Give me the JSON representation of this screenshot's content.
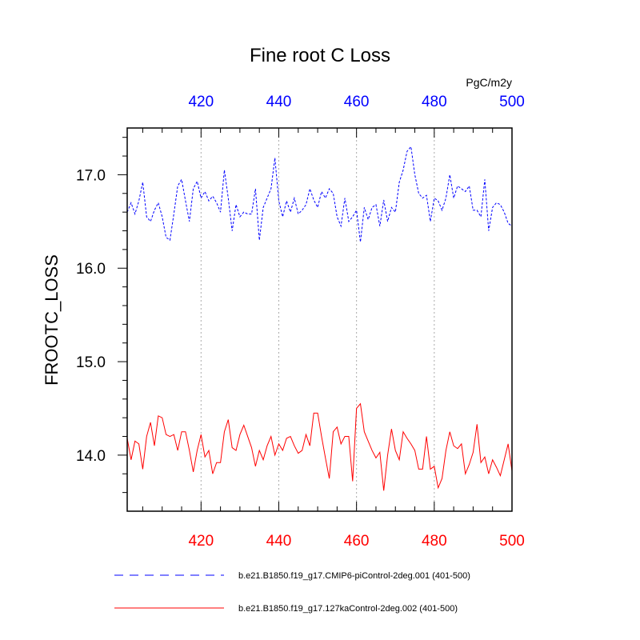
{
  "chart_data": {
    "type": "line",
    "title": "Fine root C Loss",
    "units": "PgC/m2y",
    "ylabel": "FROOTC_LOSS",
    "xlim": [
      401,
      500
    ],
    "ylim": [
      13.4,
      17.5
    ],
    "grid": "vertical dotted lines at x = 420, 440, 460, 480",
    "legend_position": "bottom",
    "top_axis_color": "#0000ff",
    "bottom_axis_color": "#ff0000",
    "x_ticks": [
      "420",
      "440",
      "460",
      "480",
      "500"
    ],
    "y_ticks": [
      "14.0",
      "15.0",
      "16.0",
      "17.0"
    ],
    "x": [
      401,
      402,
      403,
      404,
      405,
      406,
      407,
      408,
      409,
      410,
      411,
      412,
      413,
      414,
      415,
      416,
      417,
      418,
      419,
      420,
      421,
      422,
      423,
      424,
      425,
      426,
      427,
      428,
      429,
      430,
      431,
      432,
      433,
      434,
      435,
      436,
      437,
      438,
      439,
      440,
      441,
      442,
      443,
      444,
      445,
      446,
      447,
      448,
      449,
      450,
      451,
      452,
      453,
      454,
      455,
      456,
      457,
      458,
      459,
      460,
      461,
      462,
      463,
      464,
      465,
      466,
      467,
      468,
      469,
      470,
      471,
      472,
      473,
      474,
      475,
      476,
      477,
      478,
      479,
      480,
      481,
      482,
      483,
      484,
      485,
      486,
      487,
      488,
      489,
      490,
      491,
      492,
      493,
      494,
      495,
      496,
      497,
      498,
      499,
      500
    ],
    "series": [
      {
        "name": "b.e21.B1850.f19_g17.CMIP6-piControl-2deg.001 (401-500)",
        "color": "#0000ff",
        "dash": "dashed",
        "values": [
          16.6,
          16.7,
          16.58,
          16.72,
          16.92,
          16.55,
          16.5,
          16.62,
          16.7,
          16.55,
          16.33,
          16.3,
          16.58,
          16.88,
          16.95,
          16.72,
          16.5,
          16.85,
          16.93,
          16.75,
          16.82,
          16.72,
          16.77,
          16.7,
          16.6,
          17.05,
          16.75,
          16.4,
          16.68,
          16.55,
          16.6,
          16.58,
          16.58,
          16.85,
          16.3,
          16.65,
          16.75,
          16.85,
          17.18,
          16.72,
          16.55,
          16.72,
          16.6,
          16.75,
          16.58,
          16.62,
          16.68,
          16.85,
          16.73,
          16.65,
          16.82,
          16.75,
          16.85,
          16.8,
          16.55,
          16.45,
          16.75,
          16.5,
          16.55,
          16.62,
          16.28,
          16.65,
          16.52,
          16.65,
          16.68,
          16.45,
          16.73,
          16.5,
          16.65,
          16.6,
          16.92,
          17.05,
          17.25,
          17.3,
          17.0,
          16.8,
          16.75,
          16.78,
          16.5,
          16.75,
          16.72,
          16.62,
          16.75,
          17.0,
          16.75,
          16.88,
          16.85,
          16.82,
          16.88,
          16.62,
          16.62,
          16.55,
          16.95,
          16.4,
          16.65,
          16.7,
          16.68,
          16.6,
          16.48,
          16.45
        ]
      },
      {
        "name": "b.e21.B1850.f19_g17.127kaControl-2deg.002 (401-500)",
        "color": "#ff0000",
        "dash": "solid",
        "values": [
          14.18,
          13.95,
          14.15,
          14.12,
          13.85,
          14.2,
          14.35,
          14.1,
          14.42,
          14.4,
          14.22,
          14.2,
          14.22,
          14.05,
          14.25,
          14.25,
          14.05,
          13.82,
          14.05,
          14.22,
          13.98,
          14.05,
          13.8,
          13.92,
          13.92,
          14.25,
          14.38,
          14.08,
          14.05,
          14.22,
          14.32,
          14.2,
          14.08,
          13.88,
          14.05,
          13.95,
          14.1,
          14.2,
          14.0,
          14.12,
          14.05,
          14.18,
          14.2,
          14.1,
          14.02,
          14.05,
          14.22,
          14.1,
          14.45,
          14.45,
          14.2,
          13.97,
          13.75,
          14.25,
          14.3,
          14.12,
          14.2,
          14.2,
          13.72,
          14.5,
          14.55,
          14.25,
          14.15,
          14.05,
          13.97,
          14.03,
          13.62,
          14.0,
          14.28,
          14.05,
          13.95,
          14.25,
          14.18,
          14.12,
          14.05,
          13.85,
          13.85,
          14.2,
          13.85,
          13.88,
          13.65,
          13.75,
          14.05,
          14.25,
          14.1,
          14.07,
          14.12,
          13.8,
          13.9,
          14.03,
          14.33,
          13.92,
          13.98,
          13.8,
          13.95,
          13.87,
          13.78,
          13.95,
          14.12,
          13.83
        ]
      }
    ]
  }
}
